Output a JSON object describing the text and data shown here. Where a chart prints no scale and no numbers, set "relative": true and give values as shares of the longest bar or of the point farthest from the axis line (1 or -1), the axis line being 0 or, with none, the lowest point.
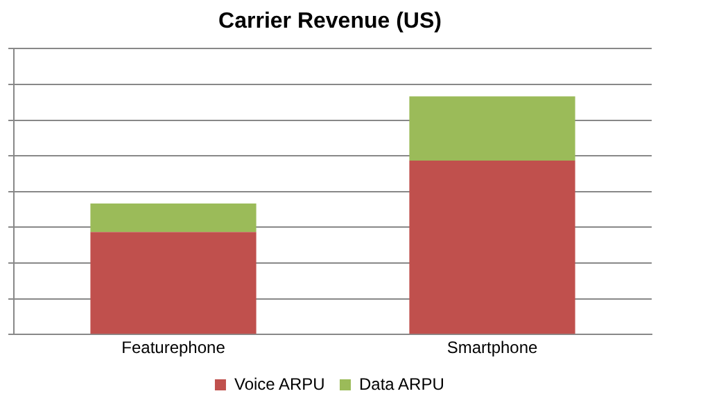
{
  "chart_data": {
    "type": "bar",
    "title": "Carrier Revenue (US)",
    "categories": [
      "Featurephone",
      "Smartphone"
    ],
    "stacked": true,
    "relative": true,
    "grid": "y",
    "legend": "bottom",
    "series": [
      {
        "name": "Voice ARPU",
        "color": "#c0504d",
        "values": [
          0.43,
          0.73
        ]
      },
      {
        "name": "Data ARPU",
        "color": "#9bbb59",
        "values": [
          0.12,
          0.27
        ]
      }
    ]
  }
}
